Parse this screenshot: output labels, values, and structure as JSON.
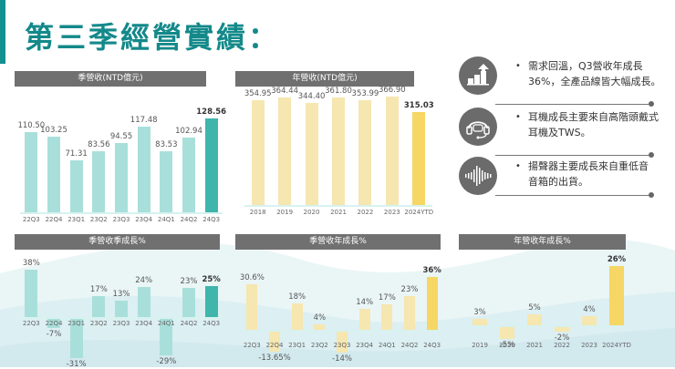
{
  "page": {
    "title": "第三季經營實績："
  },
  "colors": {
    "accent": "#13908f",
    "teal_bar": "#a9dfda",
    "teal_highlight": "#3fb5ac",
    "yellow_bar": "#f6e6b0",
    "yellow_highlight": "#f6d664",
    "header_bg": "#707070"
  },
  "bullets": [
    {
      "icon": "growth-chart-icon",
      "line1": "需求回溫，Q3營收年成長",
      "line2": "36%，全產品線皆大幅成長。"
    },
    {
      "icon": "headset-icon",
      "line1": "耳機成長主要來自高階頭戴式",
      "line2": "耳機及TWS。"
    },
    {
      "icon": "sound-wave-icon",
      "line1": "揚聲器主要成長來自重低音",
      "line2": "音箱的出貨。"
    }
  ],
  "chart_data": [
    {
      "type": "bar",
      "title": "季營收(NTD億元)",
      "categories": [
        "22Q3",
        "22Q4",
        "23Q1",
        "23Q2",
        "23Q3",
        "23Q4",
        "24Q1",
        "24Q2",
        "24Q3"
      ],
      "values": [
        110.5,
        103.25,
        71.31,
        83.56,
        94.55,
        117.48,
        83.53,
        102.94,
        128.56
      ],
      "labels": [
        "110.50",
        "103.25",
        "71.31",
        "83.56",
        "94.55",
        "117.48",
        "83.53",
        "102.94",
        "128.56"
      ],
      "highlight_index": 8,
      "unit": "NTD億元"
    },
    {
      "type": "bar",
      "title": "年營收(NTD億元)",
      "categories": [
        "2018",
        "2019",
        "2020",
        "2021",
        "2022",
        "2023",
        "2024YTD"
      ],
      "values": [
        354.95,
        364.44,
        344.4,
        361.8,
        353.99,
        366.9,
        315.03
      ],
      "labels": [
        "354.95",
        "364.44",
        "344.40",
        "361.80",
        "353.99",
        "366.90",
        "315.03"
      ],
      "highlight_index": 6,
      "unit": "NTD億元"
    },
    {
      "type": "bar",
      "title": "季營收季成長%",
      "categories": [
        "22Q3",
        "22Q4",
        "23Q1",
        "23Q2",
        "23Q3",
        "23Q4",
        "24Q1",
        "24Q2",
        "24Q3"
      ],
      "values": [
        38,
        -7,
        -31,
        17,
        13,
        24,
        -29,
        23,
        25
      ],
      "labels": [
        "38%",
        "-7%",
        "-31%",
        "17%",
        "13%",
        "24%",
        "-29%",
        "23%",
        "25%"
      ],
      "highlight_index": 8,
      "unit": "%"
    },
    {
      "type": "bar",
      "title": "季營收年成長%",
      "categories": [
        "22Q3",
        "22Q4",
        "23Q1",
        "23Q2",
        "23Q3",
        "23Q4",
        "24Q1",
        "24Q2",
        "24Q3"
      ],
      "values": [
        30.6,
        -13.65,
        18,
        4,
        -14,
        14,
        17,
        23,
        36
      ],
      "labels": [
        "30.6%",
        "-13.65%",
        "18%",
        "4%",
        "-14%",
        "14%",
        "17%",
        "23%",
        "36%"
      ],
      "highlight_index": 8,
      "unit": "%"
    },
    {
      "type": "bar",
      "title": "年營收年成長%",
      "categories": [
        "2019",
        "2020",
        "2021",
        "2022",
        "2023",
        "2024YTD"
      ],
      "values": [
        3,
        -5,
        5,
        -2,
        4,
        26
      ],
      "labels": [
        "3%",
        "-5%",
        "5%",
        "-2%",
        "4%",
        "26%"
      ],
      "highlight_index": 5,
      "unit": "%"
    }
  ]
}
